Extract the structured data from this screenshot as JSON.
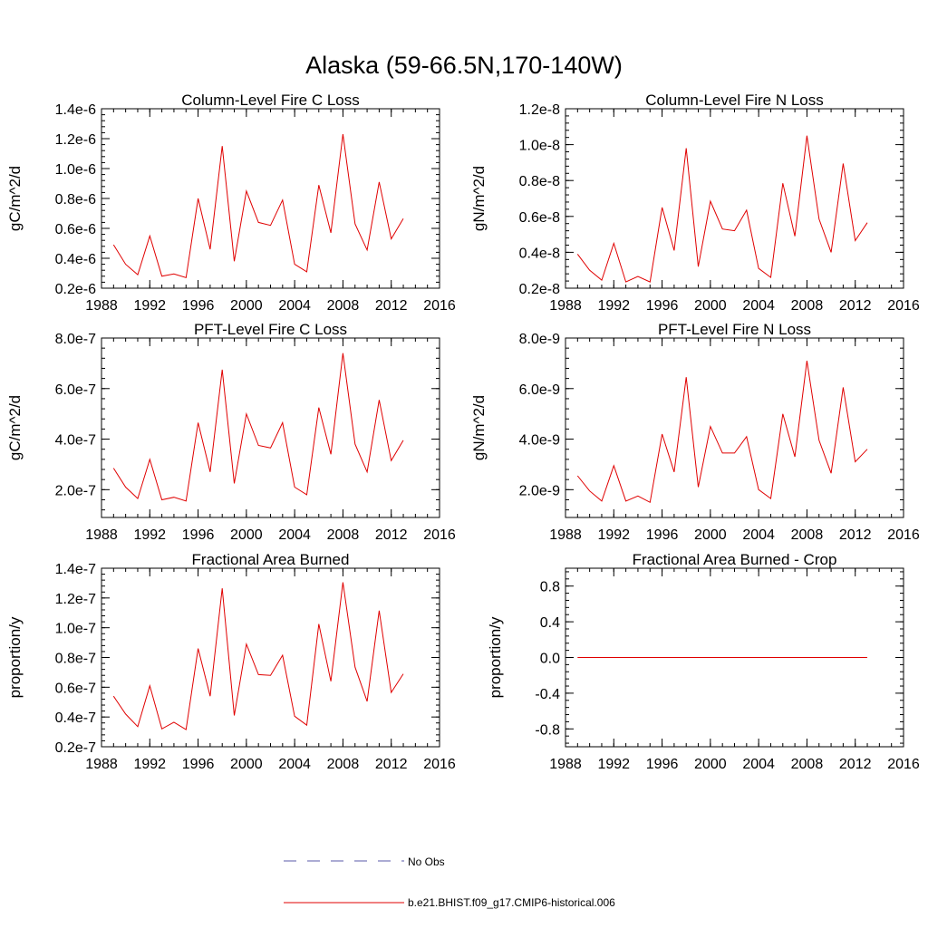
{
  "figure": {
    "title": "Alaska (59-66.5N,170-140W)"
  },
  "legend": {
    "obs_label": "No Obs",
    "obs_color": "#5a5aaa",
    "model_label": "b.e21.BHIST.f09_g17.CMIP6-historical.006",
    "model_color": "#e00000"
  },
  "chart_data": [
    {
      "type": "line",
      "title": "Column-Level Fire C Loss",
      "xlabel": "",
      "ylabel": "gC/m^2/d",
      "xlim": [
        1988,
        2016
      ],
      "ylim": [
        2e-07,
        1.4e-06
      ],
      "xticks": [
        1988,
        1992,
        1996,
        2000,
        2004,
        2008,
        2012,
        2016
      ],
      "xtick_labels": [
        "1988",
        "1992",
        "1996",
        "2000",
        "2004",
        "2008",
        "2012",
        "2016"
      ],
      "yticks": [
        2e-07,
        4e-07,
        6e-07,
        8e-07,
        1e-06,
        1.2e-06,
        1.4e-06
      ],
      "ytick_labels": [
        "0.2e-6",
        "0.4e-6",
        "0.6e-6",
        "0.8e-6",
        "1.0e-6",
        "1.2e-6",
        "1.4e-6"
      ],
      "x": [
        1989,
        1990,
        1991,
        1992,
        1993,
        1994,
        1995,
        1996,
        1997,
        1998,
        1999,
        2000,
        2001,
        2002,
        2003,
        2004,
        2005,
        2006,
        2007,
        2008,
        2009,
        2010,
        2011,
        2012,
        2013
      ],
      "series": [
        {
          "name": "b.e21.BHIST.f09_g17.CMIP6-historical.006",
          "values": [
            4.9e-07,
            3.6e-07,
            2.9e-07,
            5.5e-07,
            2.8e-07,
            2.95e-07,
            2.7e-07,
            8e-07,
            4.6e-07,
            1.15e-06,
            3.8e-07,
            8.5e-07,
            6.4e-07,
            6.2e-07,
            7.9e-07,
            3.6e-07,
            3.1e-07,
            8.9e-07,
            5.7e-07,
            1.23e-06,
            6.3e-07,
            4.55e-07,
            9.1e-07,
            5.3e-07,
            6.65e-07
          ]
        }
      ]
    },
    {
      "type": "line",
      "title": "Column-Level Fire N Loss",
      "xlabel": "",
      "ylabel": "gN/m^2/d",
      "xlim": [
        1988,
        2016
      ],
      "ylim": [
        2e-09,
        1.2e-08
      ],
      "xticks": [
        1988,
        1992,
        1996,
        2000,
        2004,
        2008,
        2012,
        2016
      ],
      "xtick_labels": [
        "1988",
        "1992",
        "1996",
        "2000",
        "2004",
        "2008",
        "2012",
        "2016"
      ],
      "yticks": [
        2e-09,
        4e-09,
        6e-09,
        8e-09,
        1e-08,
        1.2e-08
      ],
      "ytick_labels": [
        "0.2e-8",
        "0.4e-8",
        "0.6e-8",
        "0.8e-8",
        "1.0e-8",
        "1.2e-8"
      ],
      "x": [
        1989,
        1990,
        1991,
        1992,
        1993,
        1994,
        1995,
        1996,
        1997,
        1998,
        1999,
        2000,
        2001,
        2002,
        2003,
        2004,
        2005,
        2006,
        2007,
        2008,
        2009,
        2010,
        2011,
        2012,
        2013
      ],
      "series": [
        {
          "name": "b.e21.BHIST.f09_g17.CMIP6-historical.006",
          "values": [
            3.9e-09,
            3e-09,
            2.45e-09,
            4.5e-09,
            2.35e-09,
            2.65e-09,
            2.35e-09,
            6.5e-09,
            4.1e-09,
            9.8e-09,
            3.2e-09,
            6.85e-09,
            5.3e-09,
            5.2e-09,
            6.35e-09,
            3.1e-09,
            2.6e-09,
            7.85e-09,
            4.9e-09,
            1.05e-08,
            5.85e-09,
            4e-09,
            8.95e-09,
            4.65e-09,
            5.65e-09
          ]
        }
      ]
    },
    {
      "type": "line",
      "title": "PFT-Level Fire C Loss",
      "xlabel": "",
      "ylabel": "gC/m^2/d",
      "xlim": [
        1988,
        2016
      ],
      "ylim": [
        9e-08,
        8e-07
      ],
      "xticks": [
        1988,
        1992,
        1996,
        2000,
        2004,
        2008,
        2012,
        2016
      ],
      "xtick_labels": [
        "1988",
        "1992",
        "1996",
        "2000",
        "2004",
        "2008",
        "2012",
        "2016"
      ],
      "yticks": [
        2e-07,
        4e-07,
        6e-07,
        8e-07
      ],
      "ytick_labels": [
        "2.0e-7",
        "4.0e-7",
        "6.0e-7",
        "8.0e-7"
      ],
      "x": [
        1989,
        1990,
        1991,
        1992,
        1993,
        1994,
        1995,
        1996,
        1997,
        1998,
        1999,
        2000,
        2001,
        2002,
        2003,
        2004,
        2005,
        2006,
        2007,
        2008,
        2009,
        2010,
        2011,
        2012,
        2013
      ],
      "series": [
        {
          "name": "b.e21.BHIST.f09_g17.CMIP6-historical.006",
          "values": [
            2.85e-07,
            2.1e-07,
            1.65e-07,
            3.2e-07,
            1.6e-07,
            1.7e-07,
            1.55e-07,
            4.65e-07,
            2.7e-07,
            6.75e-07,
            2.25e-07,
            5e-07,
            3.75e-07,
            3.65e-07,
            4.65e-07,
            2.1e-07,
            1.8e-07,
            5.25e-07,
            3.4e-07,
            7.4e-07,
            3.8e-07,
            2.7e-07,
            5.55e-07,
            3.15e-07,
            3.95e-07
          ]
        }
      ]
    },
    {
      "type": "line",
      "title": "PFT-Level Fire N Loss",
      "xlabel": "",
      "ylabel": "gN/m^2/d",
      "xlim": [
        1988,
        2016
      ],
      "ylim": [
        9e-10,
        8e-09
      ],
      "xticks": [
        1988,
        1992,
        1996,
        2000,
        2004,
        2008,
        2012,
        2016
      ],
      "xtick_labels": [
        "1988",
        "1992",
        "1996",
        "2000",
        "2004",
        "2008",
        "2012",
        "2016"
      ],
      "yticks": [
        2e-09,
        4e-09,
        6e-09,
        8e-09
      ],
      "ytick_labels": [
        "2.0e-9",
        "4.0e-9",
        "6.0e-9",
        "8.0e-9"
      ],
      "x": [
        1989,
        1990,
        1991,
        1992,
        1993,
        1994,
        1995,
        1996,
        1997,
        1998,
        1999,
        2000,
        2001,
        2002,
        2003,
        2004,
        2005,
        2006,
        2007,
        2008,
        2009,
        2010,
        2011,
        2012,
        2013
      ],
      "series": [
        {
          "name": "b.e21.BHIST.f09_g17.CMIP6-historical.006",
          "values": [
            2.55e-09,
            1.95e-09,
            1.55e-09,
            2.95e-09,
            1.55e-09,
            1.75e-09,
            1.5e-09,
            4.2e-09,
            2.7e-09,
            6.45e-09,
            2.1e-09,
            4.5e-09,
            3.45e-09,
            3.45e-09,
            4.1e-09,
            2e-09,
            1.65e-09,
            5e-09,
            3.3e-09,
            7.1e-09,
            3.95e-09,
            2.65e-09,
            6.05e-09,
            3.1e-09,
            3.6e-09
          ]
        }
      ]
    },
    {
      "type": "line",
      "title": "Fractional Area Burned",
      "xlabel": "",
      "ylabel": "proportion/y",
      "xlim": [
        1988,
        2016
      ],
      "ylim": [
        2e-08,
        1.4e-07
      ],
      "xticks": [
        1988,
        1992,
        1996,
        2000,
        2004,
        2008,
        2012,
        2016
      ],
      "xtick_labels": [
        "1988",
        "1992",
        "1996",
        "2000",
        "2004",
        "2008",
        "2012",
        "2016"
      ],
      "yticks": [
        2e-08,
        4e-08,
        6e-08,
        8e-08,
        1e-07,
        1.2e-07,
        1.4e-07
      ],
      "ytick_labels": [
        "0.2e-7",
        "0.4e-7",
        "0.6e-7",
        "0.8e-7",
        "1.0e-7",
        "1.2e-7",
        "1.4e-7"
      ],
      "x": [
        1989,
        1990,
        1991,
        1992,
        1993,
        1994,
        1995,
        1996,
        1997,
        1998,
        1999,
        2000,
        2001,
        2002,
        2003,
        2004,
        2005,
        2006,
        2007,
        2008,
        2009,
        2010,
        2011,
        2012,
        2013
      ],
      "series": [
        {
          "name": "b.e21.BHIST.f09_g17.CMIP6-historical.006",
          "values": [
            5.4e-08,
            4.2e-08,
            3.35e-08,
            6.1e-08,
            3.2e-08,
            3.65e-08,
            3.15e-08,
            8.6e-08,
            5.4e-08,
            1.265e-07,
            4.1e-08,
            8.9e-08,
            6.85e-08,
            6.8e-08,
            8.15e-08,
            4.05e-08,
            3.45e-08,
            1.025e-07,
            6.4e-08,
            1.305e-07,
            7.35e-08,
            5.05e-08,
            1.115e-07,
            5.65e-08,
            6.9e-08
          ]
        }
      ]
    },
    {
      "type": "line",
      "title": "Fractional Area Burned - Crop",
      "xlabel": "",
      "ylabel": "proportion/y",
      "xlim": [
        1988,
        2016
      ],
      "ylim": [
        -1.0,
        1.0
      ],
      "xticks": [
        1988,
        1992,
        1996,
        2000,
        2004,
        2008,
        2012,
        2016
      ],
      "xtick_labels": [
        "1988",
        "1992",
        "1996",
        "2000",
        "2004",
        "2008",
        "2012",
        "2016"
      ],
      "yticks": [
        -0.8,
        -0.4,
        0.0,
        0.4,
        0.8
      ],
      "ytick_labels": [
        "-0.8",
        "-0.4",
        "0.0",
        "0.4",
        "0.8"
      ],
      "x": [
        1989,
        1990,
        1991,
        1992,
        1993,
        1994,
        1995,
        1996,
        1997,
        1998,
        1999,
        2000,
        2001,
        2002,
        2003,
        2004,
        2005,
        2006,
        2007,
        2008,
        2009,
        2010,
        2011,
        2012,
        2013
      ],
      "series": [
        {
          "name": "b.e21.BHIST.f09_g17.CMIP6-historical.006",
          "values": [
            0,
            0,
            0,
            0,
            0,
            0,
            0,
            0,
            0,
            0,
            0,
            0,
            0,
            0,
            0,
            0,
            0,
            0,
            0,
            0,
            0,
            0,
            0,
            0,
            0
          ]
        }
      ]
    }
  ]
}
